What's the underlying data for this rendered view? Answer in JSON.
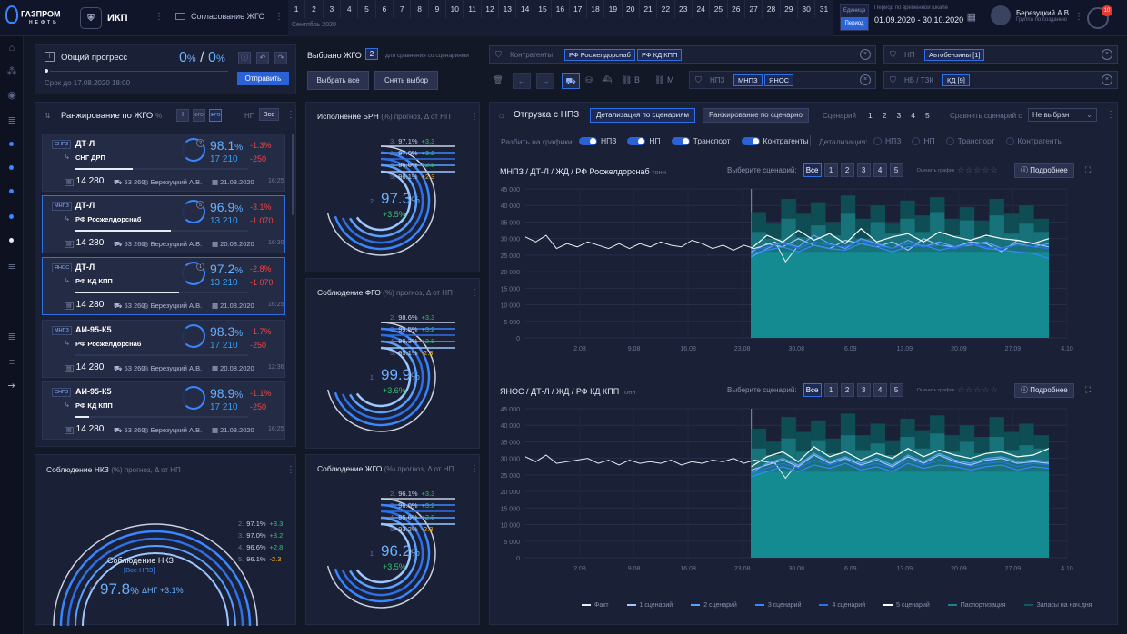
{
  "header": {
    "logo_text": "ГАЗПРОМ",
    "logo_sub": "НЕФТЬ",
    "app_name": "ИКП",
    "module": "Согласование ЖГО",
    "days": [
      "1",
      "2",
      "3",
      "4",
      "5",
      "6",
      "7",
      "8",
      "9",
      "10",
      "11",
      "12",
      "13",
      "14",
      "15",
      "16",
      "17",
      "18",
      "19",
      "20",
      "21",
      "22",
      "23",
      "24",
      "25",
      "26",
      "27",
      "28",
      "29",
      "30",
      "31"
    ],
    "month_label": "Сентябрь 2020",
    "unit_label": "Единица",
    "period_label": "Период",
    "period_caption": "Период по временной шкале",
    "period_value": "01.09.2020 - 30.10.2020",
    "user_name": "Березуцкий А.В.",
    "user_role": "Группа по созданию",
    "notif_count": "10"
  },
  "progress": {
    "title": "Общий прогресс",
    "pct_a": "0",
    "pct_b": "0",
    "unit": "%",
    "sep": "/",
    "deadline": "Срок до 17.08.2020  18:00",
    "send": "Отправить"
  },
  "selected": {
    "label": "Выбрано ЖГО",
    "count": "2",
    "hint": "для сравнения со сценариями",
    "select_all": "Выбрать все",
    "clear": "Снять выбор"
  },
  "ranking": {
    "title": "Ранжирование по ЖГО",
    "unit": "%",
    "np_label": "НП",
    "np_value": "Все",
    "cards": [
      {
        "tag": "СНПЗ",
        "product": "ДТ-Л",
        "dest": "СНГ ДРП",
        "ring": "2",
        "pct": "98.1",
        "pct_unit": "%",
        "dpct": "-1.3%",
        "qty": "17 210",
        "dqty": "-250",
        "total": "14 280",
        "trucks": "53 260",
        "who": "Березуцкий А.В.",
        "date": "21.08.2020",
        "time": "16:25",
        "progress": 0.33,
        "dpct_sign": "neg",
        "dqty_sign": "neg"
      },
      {
        "tag": "МНПЗ",
        "product": "ДТ-Л",
        "dest": "РФ Росжелдорснаб",
        "ring": "5",
        "pct": "96.9",
        "pct_unit": "%",
        "dpct": "-3.1%",
        "qty": "13 210",
        "dqty": "-1 070",
        "total": "14 280",
        "trucks": "53 260",
        "who": "Березуцкий А.В.",
        "date": "20.08.2020",
        "time": "16:30",
        "progress": 0.55,
        "dpct_sign": "neg",
        "dqty_sign": "neg"
      },
      {
        "tag": "ЯНОС",
        "product": "ДТ-Л",
        "dest": "РФ КД КПП",
        "ring": "1",
        "pct": "97.2",
        "pct_unit": "%",
        "dpct": "-2.8%",
        "qty": "13 210",
        "dqty": "-1 070",
        "total": "14 280",
        "trucks": "53 260",
        "who": "Березуцкий А.В.",
        "date": "21.08.2020",
        "time": "16:25",
        "progress": 0.6,
        "dpct_sign": "neg",
        "dqty_sign": "neg"
      },
      {
        "tag": "МНПЗ",
        "product": "АИ-95-К5",
        "dest": "РФ Росжелдорснаб",
        "ring": "",
        "pct": "98.3",
        "pct_unit": "%",
        "dpct": "-1.7%",
        "qty": "17 210",
        "dqty": "-250",
        "total": "14 280",
        "trucks": "53 260",
        "who": "Березуцкий А.В.",
        "date": "20.08.2020",
        "time": "12:36",
        "progress": 0,
        "dpct_sign": "neg",
        "dqty_sign": "neg"
      },
      {
        "tag": "СНПЗ",
        "product": "АИ-95-К5",
        "dest": "РФ КД КПП",
        "ring": "",
        "pct": "98.9",
        "pct_unit": "%",
        "dpct": "-1.1%",
        "qty": "17 210",
        "dqty": "-250",
        "total": "14 280",
        "trucks": "53 260",
        "who": "Березуцкий А.В.",
        "date": "21.08.2020",
        "time": "16:25",
        "progress": 0.08,
        "dpct_sign": "neg",
        "dqty_sign": "neg"
      }
    ]
  },
  "nkz": {
    "title": "Соблюдение НКЗ",
    "title_suffix": "(%) прогноз,  Δ от НП",
    "center_label": "Соблюдение НКЗ",
    "center_sub": "[Все НПЗ]",
    "rank": "1",
    "value": "97.8",
    "unit": "%",
    "delta": "ΔНГ +3.1%",
    "legend": [
      {
        "k": "2.",
        "v": "97.1%",
        "d": "+3.3",
        "s": "pos"
      },
      {
        "k": "3.",
        "v": "97.0%",
        "d": "+3.2",
        "s": "pos"
      },
      {
        "k": "4.",
        "v": "96.6%",
        "d": "+2.8",
        "s": "pos"
      },
      {
        "k": "5.",
        "v": "96.1%",
        "d": "-2.3",
        "s": "warn"
      }
    ]
  },
  "gauges": [
    {
      "title": "Исполнение БРН",
      "suffix": "(%) прогноз,  Δ от НП",
      "rank": "2",
      "value": "97.3",
      "unit": "%",
      "delta": "+3.5%",
      "legend": [
        {
          "k": "3.",
          "v": "97.1%",
          "d": "+3.3",
          "s": "pos"
        },
        {
          "k": "1.",
          "v": "97.0%",
          "d": "+3.2",
          "s": "pos"
        },
        {
          "k": "4.",
          "v": "96.6%",
          "d": "+2.8",
          "s": "pos"
        },
        {
          "k": "5.",
          "v": "96.1%",
          "d": "+2.3",
          "s": "warn"
        }
      ]
    },
    {
      "title": "Соблюдение ФГО",
      "suffix": "(%) прогноз,  Δ от НП",
      "rank": "1",
      "value": "99.9",
      "unit": "%",
      "delta": "+3.6%",
      "legend": [
        {
          "k": "2.",
          "v": "98.6%",
          "d": "+3.3",
          "s": "pos"
        },
        {
          "k": "3.",
          "v": "99.5%",
          "d": "+3.2",
          "s": "pos"
        },
        {
          "k": "4.",
          "v": "99.3%",
          "d": "+2.8",
          "s": "pos"
        },
        {
          "k": "5.",
          "v": "95.1%",
          "d": "-2.3",
          "s": "warn"
        }
      ]
    },
    {
      "title": "Соблюдение ЖГО",
      "suffix": "(%) прогноз,  Δ от НП",
      "rank": "1",
      "value": "96.2",
      "unit": "%",
      "delta": "+3.5%",
      "legend": [
        {
          "k": "2.",
          "v": "96.1%",
          "d": "+3.3",
          "s": "pos"
        },
        {
          "k": "3.",
          "v": "96.0%",
          "d": "+3.2",
          "s": "pos"
        },
        {
          "k": "4.",
          "v": "95.6%",
          "d": "+2.8",
          "s": "pos"
        },
        {
          "k": "5.",
          "v": "93.2%",
          "d": "-2.3",
          "s": "warn"
        }
      ]
    }
  ],
  "filters": {
    "counterparties_label": "Контрагенты",
    "counterparties": [
      "РФ Росжелдорснаб",
      "РФ КД КПП"
    ],
    "np_label": "НП",
    "np_chip": "Автобензины [1]",
    "npz_label": "НПЗ",
    "npz_chips": [
      "МНПЗ",
      "ЯНОС"
    ],
    "nb_label": "НБ / ТЗК",
    "nb_chip": "КД [9]",
    "transport_btns": [
      "В",
      "М"
    ]
  },
  "shipment": {
    "title": "Отгрузка с НПЗ",
    "tab_detail": "Детализация по сценариям",
    "tab_rank": "Ранжирование по сценарно",
    "scenarios_label": "Сценарий",
    "scenarios": [
      "1",
      "2",
      "3",
      "4",
      "5"
    ],
    "compare_label": "Сравнить сценарий с",
    "compare_value": "Не выбран",
    "split_label": "Разбить на графики:",
    "split": [
      "НПЗ",
      "НП",
      "Транспорт",
      "Контрагенты"
    ],
    "detail_label": "Детализация:",
    "detail": [
      "НПЗ",
      "НП",
      "Транспорт",
      "Контрагенты"
    ]
  },
  "charts_ui": [
    {
      "title": "МНПЗ / ДТ-Л / ЖД / РФ Росжелдорснаб",
      "unit": "тонн",
      "pick": "Выберите сценарий:",
      "all": "Все",
      "btns": [
        "1",
        "2",
        "3",
        "4",
        "5"
      ],
      "rate": "Оценить график",
      "more": "Подробнее"
    },
    {
      "title": "ЯНОС / ДТ-Л / ЖД / РФ КД КПП",
      "unit": "тонн",
      "pick": "Выберите сценарий:",
      "all": "Все",
      "btns": [
        "1",
        "2",
        "3",
        "4",
        "5"
      ],
      "rate": "Оценить график",
      "more": "Подробнее"
    }
  ],
  "chart_legend": [
    "Факт",
    "1 сценарий",
    "2 сценарий",
    "3 сценарий",
    "4 сценарий",
    "5 сценарий",
    "Паспортизация",
    "Запасы на нач.дня"
  ],
  "chart_data": [
    {
      "type": "line",
      "title": "МНПЗ / ДТ-Л / ЖД / РФ Росжелдорснаб",
      "ylabel": "тонн",
      "ylim": [
        0,
        45000
      ],
      "yticks": [
        "0",
        "5 000",
        "10 000",
        "15 000",
        "20 000",
        "25 000",
        "30 000",
        "35 000",
        "40 000",
        "45 000"
      ],
      "xticks": [
        "2.08",
        "9.08",
        "16.08",
        "23.08",
        "30.08",
        "6.09",
        "13.09",
        "20.09",
        "27.09",
        "4.10"
      ],
      "series": [
        {
          "name": "Факт",
          "values": [
            30500,
            29000,
            31000,
            27000,
            28500,
            27500,
            29000,
            28000,
            27000,
            28500,
            27000,
            28500,
            27500,
            29000,
            28000,
            27500,
            29500,
            28500,
            27000,
            28000,
            26500,
            28000,
            27000,
            28000,
            29000,
            23000,
            27000
          ]
        },
        {
          "name": "1 сценарий",
          "values": [
            26000,
            28500,
            27500,
            30000,
            28000,
            27000,
            29500,
            28500,
            27500,
            29000,
            26500,
            30000,
            28000,
            27500,
            29000,
            28500,
            26000,
            29500,
            28500,
            27500
          ]
        },
        {
          "name": "2 сценарий",
          "values": [
            24500,
            27000,
            29000,
            27500,
            31000,
            28500,
            27000,
            30000,
            28500,
            27000,
            29500,
            27500,
            29000,
            27500,
            28000,
            29000,
            27000,
            28500,
            27500,
            28500
          ]
        },
        {
          "name": "3 сценарий",
          "values": [
            25500,
            26500,
            27500,
            26000,
            28000,
            27000,
            26500,
            28500,
            27500,
            26000,
            27500,
            28000,
            26500,
            27500,
            28500,
            27000,
            26500,
            26000,
            25500,
            24000
          ]
        },
        {
          "name": "4 сценарий",
          "values": [
            26500,
            27500,
            28500,
            27000,
            29000,
            28000,
            27500,
            29500,
            28000,
            27000,
            28500,
            27500,
            28000,
            27000,
            28500,
            27500,
            27000,
            28000,
            27500,
            27000
          ]
        },
        {
          "name": "5 сценарий",
          "values": [
            27000,
            31000,
            29000,
            32500,
            29500,
            31500,
            28500,
            33000,
            29000,
            30500,
            31500,
            29000,
            32000,
            30500,
            29500,
            31000,
            30000,
            29500,
            28500,
            30000
          ]
        },
        {
          "name": "Паспортизация",
          "values": [
            32000,
            30000,
            36000,
            30500,
            34000,
            31000,
            37500,
            30000,
            35000,
            31500,
            36000,
            32000,
            38000,
            31000,
            35500,
            30500,
            37000,
            31500,
            34500,
            32000
          ]
        },
        {
          "name": "Запасы на нач.дня",
          "values": [
            38000,
            34500,
            42000,
            37500,
            41000,
            35000,
            43000,
            36000,
            40000,
            34500,
            41500,
            37000,
            42500,
            36000,
            39500,
            35500,
            42000,
            37500,
            40000,
            36000
          ]
        }
      ]
    },
    {
      "type": "line",
      "title": "ЯНОС / ДТ-Л / ЖД / РФ КД КПП",
      "ylabel": "тонн",
      "ylim": [
        0,
        45000
      ],
      "yticks": [
        "0",
        "5 000",
        "10 000",
        "15 000",
        "20 000",
        "25 000",
        "30 000",
        "35 000",
        "40 000",
        "45 000"
      ],
      "xticks": [
        "2.08",
        "9.08",
        "16.08",
        "23.08",
        "30.08",
        "6.09",
        "13.09",
        "20.09",
        "27.09",
        "4.10"
      ],
      "series": [
        {
          "name": "Факт",
          "values": [
            30500,
            29000,
            31000,
            28500,
            29000,
            29500,
            30000,
            28500,
            29500,
            28000,
            29500,
            28500,
            29000,
            28500,
            29500,
            28000,
            29000,
            28500,
            29500,
            29000,
            30000,
            28500,
            29500,
            29000,
            28500,
            24000,
            28000
          ]
        },
        {
          "name": "1 сценарий",
          "values": [
            26500,
            28000,
            29500,
            27500,
            31000,
            28500,
            30000,
            28000,
            29500,
            27500,
            30500,
            28500,
            31000,
            29000,
            28000,
            29500,
            30000,
            28500,
            29000,
            28500
          ]
        },
        {
          "name": "2 сценарий",
          "values": [
            25500,
            28500,
            30000,
            28000,
            31500,
            29000,
            30500,
            28500,
            30000,
            28000,
            31000,
            29000,
            31500,
            29500,
            28500,
            30000,
            30500,
            29000,
            29500,
            29000
          ]
        },
        {
          "name": "3 сценарий",
          "values": [
            24500,
            26000,
            27500,
            26000,
            28000,
            27000,
            28500,
            26500,
            27500,
            26000,
            28500,
            27000,
            28000,
            27500,
            26500,
            27500,
            28000,
            26500,
            27500,
            27000
          ]
        },
        {
          "name": "4 сценарий",
          "values": [
            25500,
            27000,
            28500,
            27000,
            29500,
            28000,
            29500,
            27500,
            28500,
            27000,
            29500,
            28000,
            29500,
            28500,
            27500,
            28500,
            29000,
            27500,
            28500,
            28000
          ]
        },
        {
          "name": "5 сценарий",
          "values": [
            27500,
            30500,
            32000,
            29000,
            33500,
            30500,
            32000,
            29500,
            31500,
            30000,
            33000,
            30500,
            32500,
            31000,
            30000,
            31500,
            32000,
            30500,
            31000,
            33000
          ]
        },
        {
          "name": "Паспортизация",
          "values": [
            33000,
            31000,
            36000,
            32000,
            35500,
            31500,
            37000,
            32500,
            34500,
            31000,
            36500,
            33000,
            37500,
            32000,
            35000,
            31500,
            36500,
            32500,
            34000,
            33000
          ]
        },
        {
          "name": "Запасы на нач.дня",
          "values": [
            39000,
            35000,
            42500,
            38000,
            41500,
            36000,
            43500,
            37000,
            40500,
            35500,
            42000,
            38500,
            43000,
            37000,
            40000,
            36500,
            42500,
            38000,
            40500,
            37000
          ]
        }
      ]
    }
  ]
}
